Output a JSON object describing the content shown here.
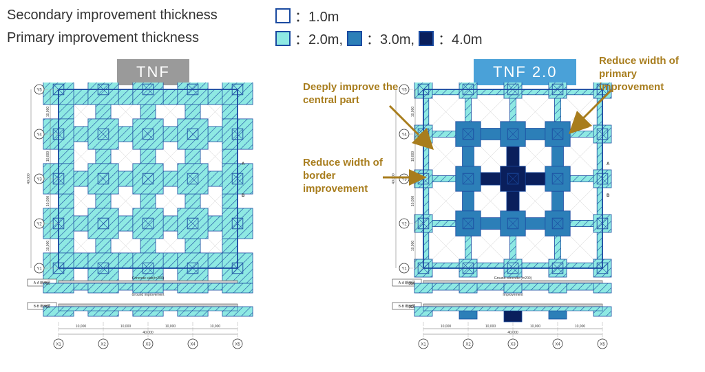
{
  "legend": {
    "secondary_label": "Secondary improvement thickness",
    "primary_label": "Primary improvement thickness",
    "swatches": {
      "white": {
        "text": "：1.0m",
        "color": "#ffffff"
      },
      "teal": {
        "text": "：2.0m, ",
        "color": "#8ee9e3"
      },
      "mid": {
        "text": "：3.0m, ",
        "color": "#2c7fb8"
      },
      "dark": {
        "text": "：4.0m",
        "color": "#0a1f5c"
      }
    },
    "border": "#1a4aa0"
  },
  "titles": {
    "left": "TNF",
    "right": "TNF   2.0",
    "left_bg": "#9a9a9a",
    "right_bg": "#4aa1d8"
  },
  "colors": {
    "border": "#1a4aa0",
    "teal": "#8ee9e3",
    "white": "#ffffff",
    "mid": "#2c7fb8",
    "dark": "#0a1f5c",
    "hatch": "#6fd4cc",
    "axis_text": "#333333",
    "accent": "#a87d1d",
    "grey_line": "#888888"
  },
  "plan": {
    "size": 40000,
    "bay": 10000,
    "axes_x": [
      "X1",
      "X2",
      "X3",
      "X4",
      "X5"
    ],
    "axes_y": [
      "Y1",
      "Y2",
      "Y3",
      "Y4",
      "Y5"
    ],
    "node_half": 1200,
    "tnf": {
      "outer_band": 3400,
      "beam_width": 3400,
      "pad_half": 3400
    },
    "tnf2": {
      "outer_band": 1200,
      "beam_width": 1400,
      "pad_half": 2000,
      "mid_beam_width": 2600,
      "mid_pad_half": 2800,
      "dark_half": 1400
    },
    "section_labels": {
      "aa": "A-A 断面図",
      "bb": "B-B 断面図",
      "slab": "Concrete slab(t=200)",
      "ground": "Ground improvement",
      "ground2": "Ground concrete (t=200)",
      "improve2": "Improvement",
      "gl": "▽GL"
    },
    "bottom_dims": [
      "10,000",
      "10,000",
      "10,000",
      "10,000"
    ],
    "bottom_total": "40,000",
    "left_dims": [
      "10,000",
      "10,000",
      "10,000",
      "10,000"
    ],
    "left_total": "40,000",
    "ab_label_a": "A",
    "ab_label_b": "B"
  },
  "callouts": {
    "c1": "Deeply improve the central part",
    "c2": "Reduce width of primary improvement",
    "c3": "Reduce width of border improvement"
  }
}
